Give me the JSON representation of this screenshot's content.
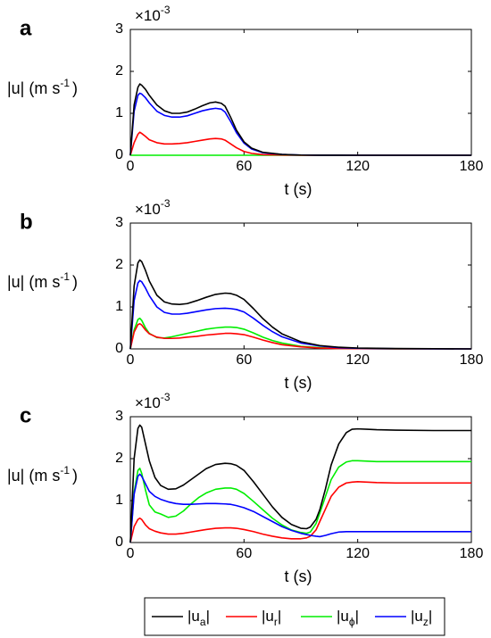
{
  "legend": [
    {
      "base": "|u",
      "sub": "a",
      "tail": "|",
      "color": "#000000"
    },
    {
      "base": "|u",
      "sub": "r",
      "tail": "|",
      "color": "#ff0000"
    },
    {
      "base": "|u",
      "sub": "ϕ",
      "tail": "|",
      "color": "#00ee00"
    },
    {
      "base": "|u",
      "sub": "z",
      "tail": "|",
      "color": "#0000ff"
    }
  ],
  "chart_data": [
    {
      "type": "line",
      "panel": "a",
      "xlabel": "t (s)",
      "ylabel": "|u| (m s-1)",
      "ylabel_parts": {
        "main": "|u| (m s",
        "sup": "-1",
        "close": ")"
      },
      "y_multiplier": {
        "base": "×10",
        "exp": "-3"
      },
      "xlim": [
        0,
        180
      ],
      "ylim": [
        0,
        3
      ],
      "xticks": [
        0,
        60,
        120,
        180
      ],
      "yticks": [
        0,
        1,
        2,
        3
      ],
      "grid": false,
      "series": [
        {
          "name": "|u_a|",
          "color": "#000000",
          "x": [
            0,
            2,
            4,
            5,
            6,
            8,
            10,
            14,
            18,
            22,
            26,
            30,
            34,
            38,
            42,
            45,
            48,
            50,
            53,
            56,
            60,
            64,
            70,
            80,
            90,
            100,
            120,
            150,
            180
          ],
          "y": [
            0,
            1.2,
            1.62,
            1.7,
            1.67,
            1.57,
            1.43,
            1.2,
            1.06,
            1.0,
            1.0,
            1.03,
            1.1,
            1.18,
            1.25,
            1.27,
            1.24,
            1.17,
            0.9,
            0.6,
            0.32,
            0.17,
            0.07,
            0.02,
            0.005,
            0.002,
            0,
            0,
            0
          ]
        },
        {
          "name": "|u_r|",
          "color": "#ff0000",
          "x": [
            0,
            2,
            4,
            5,
            6,
            8,
            10,
            14,
            18,
            22,
            26,
            30,
            34,
            38,
            42,
            45,
            48,
            50,
            53,
            56,
            60,
            64,
            70,
            80,
            90,
            100,
            120,
            150,
            180
          ],
          "y": [
            0,
            0.3,
            0.5,
            0.55,
            0.52,
            0.45,
            0.37,
            0.3,
            0.27,
            0.27,
            0.28,
            0.3,
            0.33,
            0.36,
            0.39,
            0.4,
            0.39,
            0.36,
            0.27,
            0.18,
            0.09,
            0.045,
            0.015,
            0.005,
            0,
            0,
            0,
            0,
            0
          ]
        },
        {
          "name": "|u_ϕ|",
          "color": "#00ee00",
          "x": [
            0,
            180
          ],
          "y": [
            0,
            0
          ]
        },
        {
          "name": "|u_z|",
          "color": "#0000ff",
          "x": [
            0,
            2,
            4,
            5,
            6,
            8,
            10,
            14,
            18,
            22,
            26,
            30,
            34,
            38,
            42,
            45,
            48,
            50,
            53,
            56,
            60,
            64,
            70,
            80,
            90,
            100,
            120,
            150,
            180
          ],
          "y": [
            0,
            1.05,
            1.43,
            1.48,
            1.46,
            1.37,
            1.25,
            1.05,
            0.95,
            0.91,
            0.91,
            0.94,
            1.0,
            1.06,
            1.1,
            1.12,
            1.1,
            1.03,
            0.8,
            0.54,
            0.29,
            0.15,
            0.06,
            0.02,
            0.005,
            0.002,
            0,
            0,
            0
          ]
        }
      ]
    },
    {
      "type": "line",
      "panel": "b",
      "xlabel": "t (s)",
      "ylabel": "|u| (m s-1)",
      "ylabel_parts": {
        "main": "|u| (m s",
        "sup": "-1",
        "close": ")"
      },
      "y_multiplier": {
        "base": "×10",
        "exp": "-3"
      },
      "xlim": [
        0,
        180
      ],
      "ylim": [
        0,
        3
      ],
      "xticks": [
        0,
        60,
        120,
        180
      ],
      "yticks": [
        0,
        1,
        2,
        3
      ],
      "grid": false,
      "series": [
        {
          "name": "|u_a|",
          "color": "#000000",
          "x": [
            0,
            2,
            4,
            5,
            6,
            8,
            10,
            14,
            18,
            22,
            26,
            30,
            35,
            40,
            45,
            50,
            53,
            56,
            60,
            65,
            70,
            75,
            80,
            90,
            100,
            110,
            120,
            140,
            160,
            180
          ],
          "y": [
            0,
            1.5,
            2.05,
            2.12,
            2.08,
            1.87,
            1.62,
            1.28,
            1.12,
            1.07,
            1.06,
            1.08,
            1.15,
            1.23,
            1.3,
            1.33,
            1.32,
            1.28,
            1.18,
            0.96,
            0.72,
            0.52,
            0.36,
            0.17,
            0.08,
            0.04,
            0.02,
            0.01,
            0.005,
            0
          ]
        },
        {
          "name": "|u_r|",
          "color": "#ff0000",
          "x": [
            0,
            2,
            4,
            5,
            6,
            8,
            10,
            14,
            18,
            22,
            26,
            30,
            35,
            40,
            45,
            50,
            53,
            56,
            60,
            65,
            70,
            75,
            80,
            90,
            100,
            110,
            120,
            140,
            160,
            180
          ],
          "y": [
            0,
            0.4,
            0.58,
            0.6,
            0.57,
            0.45,
            0.36,
            0.28,
            0.25,
            0.25,
            0.26,
            0.28,
            0.3,
            0.33,
            0.35,
            0.37,
            0.37,
            0.36,
            0.34,
            0.28,
            0.21,
            0.15,
            0.1,
            0.05,
            0.02,
            0.01,
            0.005,
            0,
            0,
            0
          ]
        },
        {
          "name": "|u_ϕ|",
          "color": "#00ee00",
          "x": [
            0,
            2,
            4,
            5,
            6,
            8,
            10,
            14,
            18,
            22,
            26,
            30,
            35,
            40,
            45,
            50,
            53,
            56,
            60,
            65,
            70,
            75,
            80,
            90,
            100,
            110,
            120,
            140,
            160,
            180
          ],
          "y": [
            0,
            0.45,
            0.7,
            0.73,
            0.68,
            0.5,
            0.37,
            0.27,
            0.26,
            0.29,
            0.33,
            0.37,
            0.42,
            0.47,
            0.5,
            0.52,
            0.52,
            0.51,
            0.47,
            0.38,
            0.28,
            0.2,
            0.14,
            0.06,
            0.03,
            0.01,
            0.005,
            0,
            0,
            0
          ]
        },
        {
          "name": "|u_z|",
          "color": "#0000ff",
          "x": [
            0,
            2,
            4,
            5,
            6,
            8,
            10,
            14,
            18,
            22,
            26,
            30,
            35,
            40,
            45,
            50,
            53,
            56,
            60,
            65,
            70,
            75,
            80,
            90,
            100,
            110,
            120,
            140,
            160,
            180
          ],
          "y": [
            0,
            1.15,
            1.57,
            1.63,
            1.6,
            1.45,
            1.27,
            1.0,
            0.87,
            0.83,
            0.83,
            0.85,
            0.89,
            0.93,
            0.96,
            0.97,
            0.96,
            0.94,
            0.88,
            0.73,
            0.56,
            0.41,
            0.29,
            0.14,
            0.07,
            0.03,
            0.015,
            0.005,
            0,
            0
          ]
        }
      ]
    },
    {
      "type": "line",
      "panel": "c",
      "xlabel": "t (s)",
      "ylabel": "|u| (m s-1)",
      "ylabel_parts": {
        "main": "|u| (m s",
        "sup": "-1",
        "close": ")"
      },
      "y_multiplier": {
        "base": "×10",
        "exp": "-3"
      },
      "xlim": [
        0,
        180
      ],
      "ylim": [
        0,
        3
      ],
      "xticks": [
        0,
        60,
        120,
        180
      ],
      "yticks": [
        0,
        1,
        2,
        3
      ],
      "grid": false,
      "series": [
        {
          "name": "|u_a|",
          "color": "#000000",
          "x": [
            0,
            2,
            4,
            5,
            6,
            8,
            10,
            13,
            16,
            20,
            24,
            28,
            32,
            36,
            40,
            45,
            50,
            53,
            56,
            60,
            65,
            70,
            75,
            80,
            85,
            90,
            93,
            95,
            98,
            100,
            103,
            106,
            110,
            114,
            117,
            120,
            125,
            130,
            140,
            160,
            180
          ],
          "y": [
            0,
            2.0,
            2.72,
            2.8,
            2.75,
            2.35,
            1.95,
            1.55,
            1.36,
            1.27,
            1.28,
            1.37,
            1.5,
            1.63,
            1.76,
            1.86,
            1.89,
            1.88,
            1.84,
            1.72,
            1.45,
            1.15,
            0.85,
            0.6,
            0.43,
            0.34,
            0.33,
            0.37,
            0.55,
            0.78,
            1.28,
            1.85,
            2.35,
            2.62,
            2.7,
            2.71,
            2.7,
            2.69,
            2.68,
            2.67,
            2.67
          ]
        },
        {
          "name": "|u_r|",
          "color": "#ff0000",
          "x": [
            0,
            2,
            4,
            5,
            6,
            8,
            10,
            13,
            16,
            20,
            24,
            28,
            32,
            36,
            40,
            45,
            50,
            53,
            56,
            60,
            65,
            70,
            75,
            80,
            85,
            90,
            93,
            95,
            98,
            100,
            103,
            106,
            110,
            114,
            117,
            120,
            125,
            130,
            140,
            160,
            180
          ],
          "y": [
            0,
            0.38,
            0.55,
            0.58,
            0.55,
            0.42,
            0.33,
            0.27,
            0.23,
            0.2,
            0.2,
            0.22,
            0.25,
            0.28,
            0.31,
            0.34,
            0.35,
            0.35,
            0.34,
            0.31,
            0.26,
            0.2,
            0.15,
            0.11,
            0.09,
            0.09,
            0.11,
            0.15,
            0.3,
            0.5,
            0.8,
            1.1,
            1.32,
            1.42,
            1.44,
            1.45,
            1.44,
            1.43,
            1.42,
            1.42,
            1.42
          ]
        },
        {
          "name": "|u_ϕ|",
          "color": "#00ee00",
          "x": [
            0,
            2,
            4,
            5,
            6,
            8,
            10,
            13,
            16,
            20,
            24,
            28,
            32,
            36,
            40,
            45,
            50,
            53,
            56,
            60,
            65,
            70,
            75,
            80,
            85,
            90,
            93,
            95,
            98,
            100,
            103,
            106,
            110,
            114,
            117,
            120,
            125,
            130,
            140,
            160,
            180
          ],
          "y": [
            0,
            1.2,
            1.72,
            1.77,
            1.65,
            1.25,
            0.9,
            0.73,
            0.68,
            0.6,
            0.63,
            0.75,
            0.92,
            1.07,
            1.18,
            1.27,
            1.3,
            1.3,
            1.27,
            1.17,
            0.98,
            0.78,
            0.58,
            0.42,
            0.3,
            0.24,
            0.22,
            0.25,
            0.45,
            0.7,
            1.1,
            1.5,
            1.8,
            1.92,
            1.95,
            1.95,
            1.94,
            1.93,
            1.93,
            1.93,
            1.93
          ]
        },
        {
          "name": "|u_z|",
          "color": "#0000ff",
          "x": [
            0,
            2,
            4,
            5,
            6,
            8,
            10,
            13,
            16,
            20,
            24,
            28,
            32,
            36,
            40,
            45,
            50,
            53,
            56,
            60,
            65,
            70,
            75,
            80,
            85,
            90,
            93,
            95,
            98,
            100,
            103,
            106,
            110,
            114,
            117,
            120,
            125,
            130,
            140,
            160,
            180
          ],
          "y": [
            0,
            1.15,
            1.58,
            1.63,
            1.58,
            1.4,
            1.22,
            1.1,
            1.03,
            0.97,
            0.93,
            0.91,
            0.91,
            0.92,
            0.93,
            0.93,
            0.92,
            0.91,
            0.88,
            0.83,
            0.74,
            0.62,
            0.5,
            0.38,
            0.29,
            0.22,
            0.19,
            0.17,
            0.15,
            0.14,
            0.17,
            0.21,
            0.25,
            0.26,
            0.26,
            0.26,
            0.26,
            0.26,
            0.26,
            0.26,
            0.26
          ]
        }
      ]
    }
  ]
}
